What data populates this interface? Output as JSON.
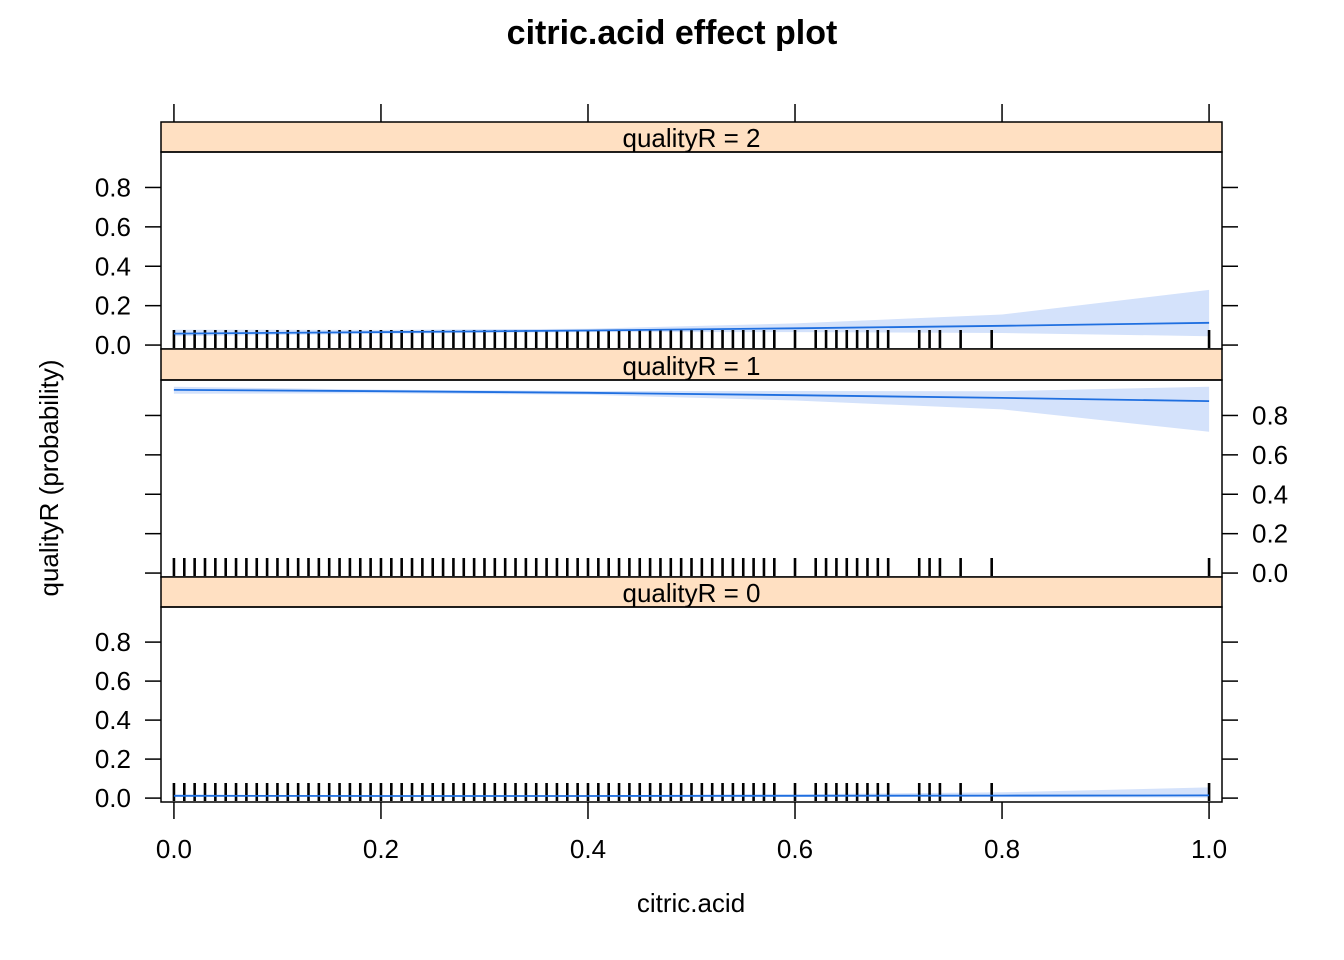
{
  "chart_data": {
    "type": "line",
    "title": "citric.acid effect plot",
    "xlabel": "citric.acid",
    "ylabel": "qualityR (probability)",
    "xlim": [
      -0.0125,
      1.0125
    ],
    "ylim": [
      -0.02,
      0.98
    ],
    "x_ticks": [
      0.0,
      0.2,
      0.4,
      0.6,
      0.8,
      1.0
    ],
    "x_tick_labels": [
      "0.0",
      "0.2",
      "0.4",
      "0.6",
      "0.8",
      "1.0"
    ],
    "y_ticks": [
      0.0,
      0.2,
      0.4,
      0.6,
      0.8
    ],
    "y_tick_labels": [
      "0.0",
      "0.2",
      "0.4",
      "0.6",
      "0.8"
    ],
    "grid": false,
    "colors": {
      "line": "#1f6fe0",
      "band": "#d4e2fb",
      "strip": "#ffe0c2",
      "rug": "#000000"
    },
    "panels": [
      {
        "label": "qualityR = 2",
        "y_axis_side": "left",
        "x": [
          0.0,
          0.2,
          0.4,
          0.6,
          0.8,
          1.0
        ],
        "fit": [
          0.058,
          0.066,
          0.074,
          0.085,
          0.098,
          0.113
        ],
        "lower": [
          0.045,
          0.057,
          0.066,
          0.066,
          0.061,
          0.045
        ],
        "upper": [
          0.078,
          0.077,
          0.083,
          0.11,
          0.155,
          0.28
        ]
      },
      {
        "label": "qualityR = 1",
        "y_axis_side": "right",
        "x": [
          0.0,
          0.2,
          0.4,
          0.6,
          0.8,
          1.0
        ],
        "fit": [
          0.93,
          0.923,
          0.915,
          0.903,
          0.889,
          0.873
        ],
        "lower": [
          0.91,
          0.913,
          0.905,
          0.876,
          0.831,
          0.717
        ],
        "upper": [
          0.946,
          0.931,
          0.924,
          0.924,
          0.923,
          0.946
        ]
      },
      {
        "label": "qualityR = 0",
        "y_axis_side": "left",
        "x": [
          0.0,
          0.2,
          0.4,
          0.6,
          0.8,
          1.0
        ],
        "fit": [
          0.012,
          0.011,
          0.011,
          0.012,
          0.013,
          0.014
        ],
        "lower": [
          0.007,
          0.008,
          0.008,
          0.007,
          0.005,
          0.003
        ],
        "upper": [
          0.018,
          0.015,
          0.015,
          0.02,
          0.03,
          0.055
        ]
      }
    ],
    "rug_x": [
      0.0,
      0.01,
      0.02,
      0.03,
      0.04,
      0.05,
      0.06,
      0.07,
      0.08,
      0.09,
      0.1,
      0.11,
      0.12,
      0.13,
      0.14,
      0.15,
      0.16,
      0.17,
      0.18,
      0.19,
      0.2,
      0.21,
      0.22,
      0.23,
      0.24,
      0.25,
      0.26,
      0.27,
      0.28,
      0.29,
      0.3,
      0.31,
      0.32,
      0.33,
      0.34,
      0.35,
      0.36,
      0.37,
      0.38,
      0.39,
      0.4,
      0.41,
      0.42,
      0.43,
      0.44,
      0.45,
      0.46,
      0.47,
      0.48,
      0.49,
      0.5,
      0.51,
      0.52,
      0.53,
      0.54,
      0.55,
      0.56,
      0.57,
      0.58,
      0.6,
      0.62,
      0.63,
      0.64,
      0.65,
      0.66,
      0.67,
      0.68,
      0.69,
      0.72,
      0.73,
      0.74,
      0.76,
      0.79,
      1.0
    ]
  }
}
